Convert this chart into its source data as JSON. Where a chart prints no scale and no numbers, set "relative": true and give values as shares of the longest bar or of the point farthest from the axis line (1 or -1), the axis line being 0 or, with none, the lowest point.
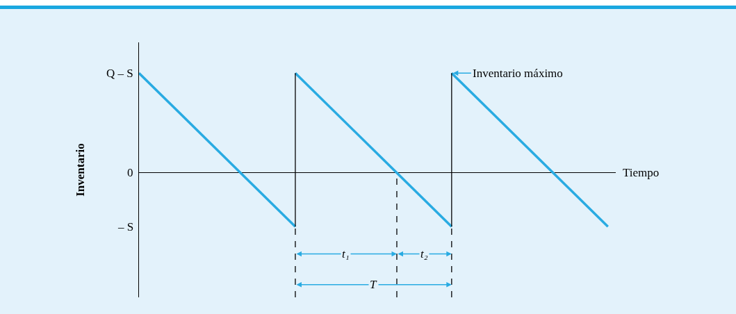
{
  "chart_data": {
    "type": "line",
    "ylabel": "Inventario",
    "xlabel": "Tiempo",
    "categories": [
      null,
      null,
      null,
      null,
      null,
      null,
      null
    ],
    "series": [
      {
        "color": "#29abe2",
        "values": [
          1,
          0.23,
          -0.54,
          null,
          null,
          null,
          null
        ]
      },
      {
        "color": "#29abe2",
        "values": [
          null,
          null,
          1,
          0.23,
          -0.54,
          null,
          null
        ]
      },
      {
        "color": "#29abe2",
        "values": [
          null,
          null,
          null,
          null,
          1,
          0.23,
          -0.54
        ]
      }
    ],
    "relative": true,
    "grid": false,
    "marker": "none",
    "line_style": "solid",
    "annotations": [
      "Q – S",
      "0",
      "– S",
      "Inventario máximo",
      "t₁",
      "t₂",
      "T"
    ]
  }
}
